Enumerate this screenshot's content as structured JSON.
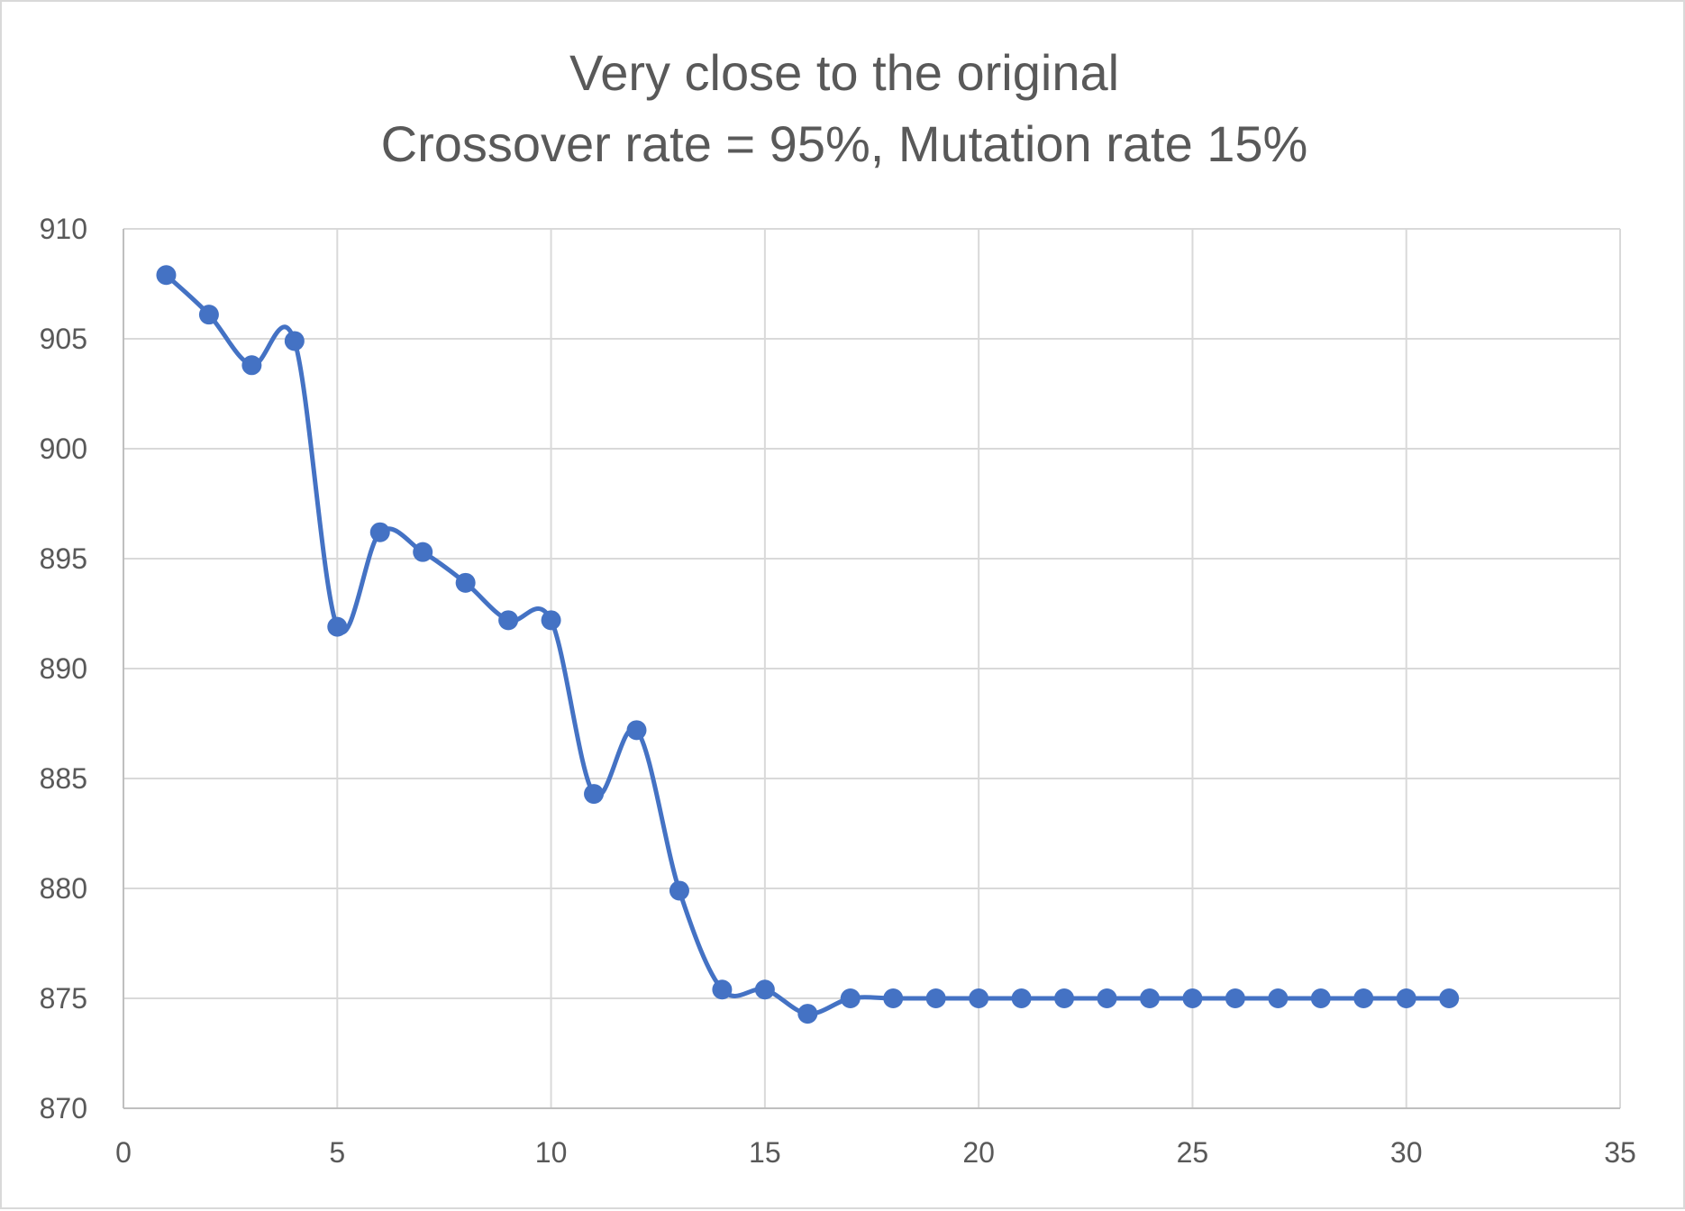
{
  "chart_data": {
    "type": "line",
    "title": "Very close to the original",
    "subtitle": "Crossover rate = 95%, Mutation rate 15%",
    "xlabel": "",
    "ylabel": "",
    "xlim": [
      0,
      35
    ],
    "ylim": [
      870,
      910
    ],
    "x_ticks": [
      "0",
      "5",
      "10",
      "15",
      "20",
      "25",
      "30",
      "35"
    ],
    "y_ticks": [
      "870",
      "875",
      "880",
      "885",
      "890",
      "895",
      "900",
      "905",
      "910"
    ],
    "grid": true,
    "legend": "none",
    "smooth": true,
    "series": [
      {
        "color": "#4472c4",
        "x": [
          1,
          2,
          3,
          4,
          5,
          6,
          7,
          8,
          9,
          10,
          11,
          12,
          13,
          14,
          15,
          16,
          17,
          18,
          19,
          20,
          21,
          22,
          23,
          24,
          25,
          26,
          27,
          28,
          29,
          30,
          31
        ],
        "values": [
          907.9,
          906.1,
          903.8,
          904.9,
          891.9,
          896.2,
          895.3,
          893.9,
          892.2,
          892.2,
          884.3,
          887.2,
          879.9,
          875.4,
          875.4,
          874.3,
          875.0,
          875.0,
          875.0,
          875.0,
          875.0,
          875.0,
          875.0,
          875.0,
          875.0,
          875.0,
          875.0,
          875.0,
          875.0,
          875.0,
          875.0
        ]
      }
    ]
  }
}
